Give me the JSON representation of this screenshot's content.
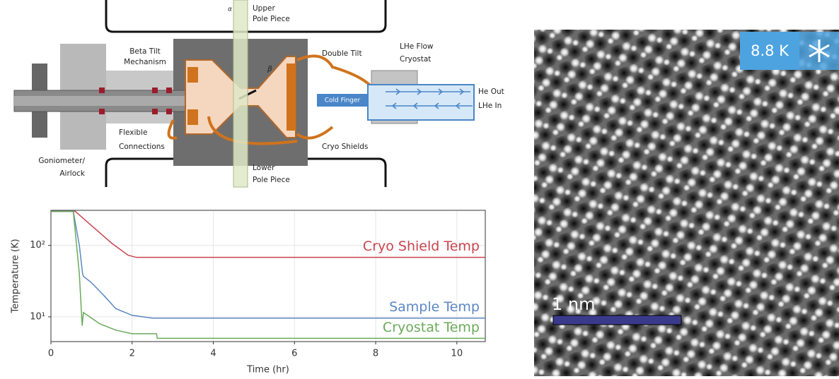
{
  "diagram": {
    "labels": [
      {
        "lines": [
          "Upper",
          "Pole Piece"
        ]
      },
      {
        "lines": [
          "Beta Tilt",
          "Mechanism"
        ]
      },
      {
        "lines": [
          "Double Tilt"
        ]
      },
      {
        "lines": [
          "LHe Flow",
          "Cryostat"
        ]
      },
      {
        "lines": [
          "Cold Finger"
        ]
      },
      {
        "lines": [
          "He Out"
        ]
      },
      {
        "lines": [
          "LHe In"
        ]
      },
      {
        "lines": [
          "Flexible",
          "Connections"
        ]
      },
      {
        "lines": [
          "Cryo Shields"
        ]
      },
      {
        "lines": [
          "Goniometer/",
          "Airlock"
        ]
      },
      {
        "lines": [
          "Lower",
          "Pole Piece"
        ]
      },
      {
        "lines": [
          "β"
        ]
      },
      {
        "lines": [
          "α"
        ]
      }
    ]
  },
  "chart_data": {
    "type": "line",
    "xlabel": "Time (hr)",
    "ylabel": "Temperature (K)",
    "xlim": [
      0,
      10.7
    ],
    "ylim": [
      4.5,
      310
    ],
    "log_y": true,
    "grid": true,
    "xticks": [
      0,
      2,
      4,
      6,
      8,
      10
    ],
    "yticks": [
      {
        "value": 10,
        "label": "10¹"
      },
      {
        "value": 100,
        "label": "10²"
      }
    ],
    "series": [
      {
        "name": "Cryo Shield Temp",
        "color": "#c9444e",
        "x": [
          0,
          0.6,
          1.0,
          1.5,
          1.9,
          2.1,
          10.7
        ],
        "values": [
          300,
          300,
          189,
          107,
          73,
          68,
          68
        ]
      },
      {
        "name": "Sample Temp",
        "color": "#5b87c4",
        "x": [
          0,
          0.55,
          0.7,
          0.78,
          0.8,
          1.0,
          1.3,
          1.6,
          2.0,
          2.5,
          10.7
        ],
        "values": [
          300,
          300,
          100,
          40,
          37,
          30,
          20,
          13,
          10.5,
          9.6,
          9.6
        ]
      },
      {
        "name": "Cryostat Temp",
        "color": "#6aaa5a",
        "x": [
          0,
          0.55,
          0.7,
          0.77,
          0.8,
          0.85,
          1.2,
          1.6,
          2.0,
          2.6,
          2.62,
          10.7
        ],
        "values": [
          300,
          300,
          40,
          7.5,
          11.5,
          11,
          8,
          6.5,
          5.8,
          5.8,
          5.0,
          5.0
        ]
      }
    ]
  },
  "micrograph": {
    "temperature_badge": "8.8 K",
    "scale_bar": "1 nm"
  }
}
